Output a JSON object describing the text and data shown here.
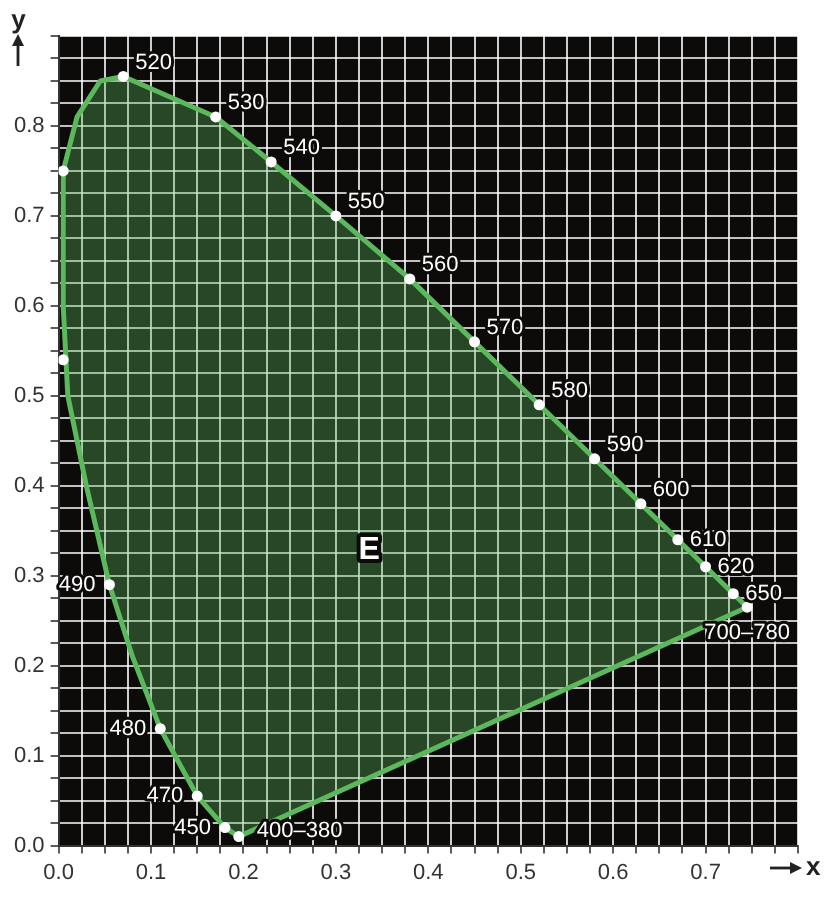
{
  "chart_data": {
    "type": "area",
    "xlabel": "x",
    "ylabel": "y",
    "xlim": [
      0,
      0.8
    ],
    "ylim": [
      0,
      0.9
    ],
    "xticks": [
      {
        "value": 0,
        "label": "0.0"
      },
      {
        "value": 0.025,
        "label": null
      },
      {
        "value": 0.05,
        "label": null
      },
      {
        "value": 0.075,
        "label": null
      },
      0.1,
      {
        "value": 0.125,
        "label": null
      },
      {
        "value": 0.15,
        "label": null
      },
      {
        "value": 0.175,
        "label": null
      },
      0.2,
      {
        "value": 0.225,
        "label": null
      },
      {
        "value": 0.25,
        "label": null
      },
      {
        "value": 0.275,
        "label": null
      },
      0.3,
      {
        "value": 0.325,
        "label": null
      },
      {
        "value": 0.35,
        "label": null
      },
      {
        "value": 0.375,
        "label": null
      },
      0.4,
      {
        "value": 0.425,
        "label": null
      },
      {
        "value": 0.45,
        "label": null
      },
      {
        "value": 0.475,
        "label": null
      },
      0.5,
      {
        "value": 0.525,
        "label": null
      },
      {
        "value": 0.55,
        "label": null
      },
      {
        "value": 0.575,
        "label": null
      },
      0.6,
      {
        "value": 0.625,
        "label": null
      },
      {
        "value": 0.65,
        "label": null
      },
      {
        "value": 0.675,
        "label": null
      },
      0.7,
      {
        "value": 0.725,
        "label": null
      },
      {
        "value": 0.75,
        "label": null
      },
      {
        "value": 0.775,
        "label": null
      },
      {
        "value": 0.8,
        "label": null
      }
    ],
    "yticks": [
      {
        "value": 0,
        "label": "0.0"
      },
      {
        "value": 0.025,
        "label": null
      },
      {
        "value": 0.05,
        "label": null
      },
      {
        "value": 0.075,
        "label": null
      },
      0.1,
      {
        "value": 0.125,
        "label": null
      },
      {
        "value": 0.15,
        "label": null
      },
      {
        "value": 0.175,
        "label": null
      },
      0.2,
      {
        "value": 0.225,
        "label": null
      },
      {
        "value": 0.25,
        "label": null
      },
      {
        "value": 0.275,
        "label": null
      },
      0.3,
      {
        "value": 0.325,
        "label": null
      },
      {
        "value": 0.35,
        "label": null
      },
      {
        "value": 0.375,
        "label": null
      },
      0.4,
      {
        "value": 0.425,
        "label": null
      },
      {
        "value": 0.45,
        "label": null
      },
      {
        "value": 0.475,
        "label": null
      },
      0.5,
      {
        "value": 0.525,
        "label": null
      },
      {
        "value": 0.55,
        "label": null
      },
      {
        "value": 0.575,
        "label": null
      },
      0.6,
      {
        "value": 0.625,
        "label": null
      },
      {
        "value": 0.65,
        "label": null
      },
      {
        "value": 0.675,
        "label": null
      },
      0.7,
      {
        "value": 0.725,
        "label": null
      },
      {
        "value": 0.75,
        "label": null
      },
      {
        "value": 0.775,
        "label": null
      },
      0.8,
      {
        "value": 0.825,
        "label": null
      },
      {
        "value": 0.85,
        "label": null
      },
      {
        "value": 0.875,
        "label": null
      },
      {
        "value": 0.9,
        "label": null
      }
    ],
    "grid": true,
    "legend": false,
    "series": [
      {
        "color": "#5cb85c",
        "marker": "none",
        "x": [
          0.195,
          0.18,
          0.15,
          0.11,
          0.08,
          0.055,
          0.03,
          0.01,
          0.005,
          0.005,
          0.02,
          0.045,
          0.07,
          0.17,
          0.23,
          0.3,
          0.38,
          0.45,
          0.52,
          0.58,
          0.63,
          0.67,
          0.7,
          0.73,
          0.745,
          0.195
        ],
        "values": [
          0.01,
          0.02,
          0.055,
          0.13,
          0.21,
          0.29,
          0.4,
          0.5,
          0.6,
          0.75,
          0.81,
          0.85,
          0.855,
          0.81,
          0.76,
          0.7,
          0.63,
          0.56,
          0.49,
          0.43,
          0.38,
          0.34,
          0.31,
          0.28,
          0.265,
          0.01
        ]
      },
      {
        "type": "scatter",
        "color": "#ffffff",
        "marker": "circle",
        "x": [
          0.195,
          0.18,
          0.15,
          0.11,
          0.055,
          0.005,
          0.005,
          0.07,
          0.17,
          0.23,
          0.3,
          0.38,
          0.45,
          0.52,
          0.58,
          0.63,
          0.67,
          0.7,
          0.73,
          0.745
        ],
        "values": [
          0.01,
          0.02,
          0.055,
          0.13,
          0.29,
          0.54,
          0.75,
          0.855,
          0.81,
          0.76,
          0.7,
          0.63,
          0.56,
          0.49,
          0.43,
          0.38,
          0.34,
          0.31,
          0.28,
          0.265
        ]
      }
    ],
    "annotations": [
      {
        "text": "400–380",
        "x": 0.195,
        "y": 0.01
      },
      {
        "text": "450",
        "x": 0.18,
        "y": 0.02
      },
      {
        "text": "470",
        "x": 0.15,
        "y": 0.055
      },
      {
        "text": "480",
        "x": 0.11,
        "y": 0.13
      },
      {
        "text": "490",
        "x": 0.055,
        "y": 0.29
      },
      {
        "text": "520",
        "x": 0.07,
        "y": 0.855
      },
      {
        "text": "530",
        "x": 0.17,
        "y": 0.81
      },
      {
        "text": "540",
        "x": 0.23,
        "y": 0.76
      },
      {
        "text": "550",
        "x": 0.3,
        "y": 0.7
      },
      {
        "text": "560",
        "x": 0.38,
        "y": 0.63
      },
      {
        "text": "570",
        "x": 0.45,
        "y": 0.56
      },
      {
        "text": "580",
        "x": 0.52,
        "y": 0.49
      },
      {
        "text": "590",
        "x": 0.58,
        "y": 0.43
      },
      {
        "text": "600",
        "x": 0.63,
        "y": 0.38
      },
      {
        "text": "610",
        "x": 0.67,
        "y": 0.34
      },
      {
        "text": "620",
        "x": 0.7,
        "y": 0.31
      },
      {
        "text": "650",
        "x": 0.73,
        "y": 0.28
      },
      {
        "text": "700–780",
        "x": 0.745,
        "y": 0.265
      },
      "E"
    ]
  }
}
